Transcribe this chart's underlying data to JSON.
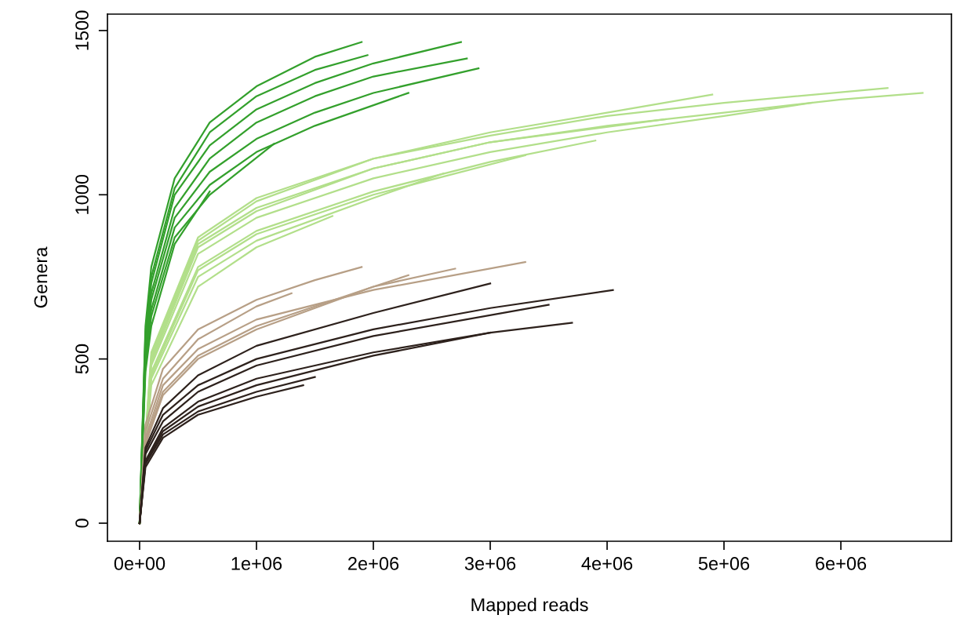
{
  "chart_data": {
    "type": "line",
    "xlabel": "Mapped reads",
    "ylabel": "Genera",
    "xlim": [
      -275000,
      6946000
    ],
    "ylim": [
      -55,
      1550
    ],
    "xticks": [
      {
        "value": 0,
        "label": "0e+00"
      },
      {
        "value": 1000000,
        "label": "1e+06"
      },
      {
        "value": 2000000,
        "label": "2e+06"
      },
      {
        "value": 3000000,
        "label": "3e+06"
      },
      {
        "value": 4000000,
        "label": "4e+06"
      },
      {
        "value": 5000000,
        "label": "5e+06"
      },
      {
        "value": 6000000,
        "label": "6e+06"
      }
    ],
    "yticks": [
      0,
      500,
      1000,
      1500
    ],
    "grid": false,
    "legend": false,
    "marker": "none",
    "line_style": "solid",
    "series": [
      {
        "color": "#b2df8a",
        "x": [
          0,
          100000,
          500000,
          1000000,
          2000000,
          3000000,
          4000000,
          5000000,
          6000000,
          6700000
        ],
        "values": [
          0,
          500,
          850,
          960,
          1080,
          1160,
          1210,
          1250,
          1290,
          1310
        ]
      },
      {
        "color": "#b2df8a",
        "x": [
          0,
          100000,
          500000,
          1000000,
          2000000,
          3000000,
          4000000,
          5000000,
          6400000
        ],
        "values": [
          0,
          520,
          870,
          990,
          1110,
          1180,
          1240,
          1280,
          1325
        ]
      },
      {
        "color": "#b2df8a",
        "x": [
          0,
          100000,
          500000,
          1000000,
          2000000,
          3000000,
          4000000,
          4900000
        ],
        "values": [
          0,
          510,
          860,
          980,
          1110,
          1190,
          1250,
          1305
        ]
      },
      {
        "color": "#b2df8a",
        "x": [
          0,
          100000,
          500000,
          1000000,
          2000000,
          3000000,
          4000000,
          5000000,
          5750000
        ],
        "values": [
          0,
          480,
          820,
          930,
          1050,
          1130,
          1190,
          1240,
          1280
        ]
      },
      {
        "color": "#b2df8a",
        "x": [
          0,
          100000,
          500000,
          1000000,
          2000000,
          3000000,
          3900000
        ],
        "values": [
          0,
          460,
          780,
          890,
          1010,
          1100,
          1165
        ]
      },
      {
        "color": "#b2df8a",
        "x": [
          0,
          100000,
          500000,
          1000000,
          1650000
        ],
        "values": [
          0,
          420,
          720,
          840,
          935
        ]
      },
      {
        "color": "#b2df8a",
        "x": [
          0,
          100000,
          500000,
          1000000,
          2000000,
          3300000
        ],
        "values": [
          0,
          450,
          770,
          880,
          1000,
          1120
        ]
      },
      {
        "color": "#b2df8a",
        "x": [
          0,
          100000,
          500000,
          1000000,
          2000000,
          2600000
        ],
        "values": [
          0,
          440,
          750,
          860,
          990,
          1065
        ]
      },
      {
        "color": "#b2df8a",
        "x": [
          0,
          100000,
          500000,
          1000000,
          2000000,
          3000000,
          4500000
        ],
        "values": [
          0,
          490,
          840,
          950,
          1080,
          1160,
          1230
        ]
      },
      {
        "color": "#33a02c",
        "x": [
          0,
          50000,
          100000,
          300000,
          600000,
          1000000,
          1500000,
          1900000
        ],
        "values": [
          0,
          600,
          780,
          1050,
          1220,
          1330,
          1420,
          1465
        ]
      },
      {
        "color": "#33a02c",
        "x": [
          0,
          50000,
          100000,
          300000,
          600000,
          1000000,
          1500000,
          2000000,
          2750000
        ],
        "values": [
          0,
          560,
          730,
          1000,
          1150,
          1260,
          1340,
          1400,
          1465
        ]
      },
      {
        "color": "#33a02c",
        "x": [
          0,
          50000,
          100000,
          300000,
          600000,
          1000000,
          1500000,
          2000000,
          2900000
        ],
        "values": [
          0,
          520,
          680,
          930,
          1070,
          1170,
          1250,
          1310,
          1385
        ]
      },
      {
        "color": "#33a02c",
        "x": [
          0,
          50000,
          100000,
          300000,
          600000,
          1000000,
          1500000,
          2300000
        ],
        "values": [
          0,
          500,
          650,
          900,
          1030,
          1130,
          1210,
          1310
        ]
      },
      {
        "color": "#33a02c",
        "x": [
          0,
          50000,
          100000,
          300000,
          600000,
          1150000
        ],
        "values": [
          0,
          480,
          630,
          870,
          1000,
          1155
        ]
      },
      {
        "color": "#33a02c",
        "x": [
          0,
          50000,
          100000,
          300000,
          600000
        ],
        "values": [
          0,
          460,
          600,
          850,
          1010
        ]
      },
      {
        "color": "#33a02c",
        "x": [
          0,
          50000,
          100000,
          300000,
          600000,
          1000000,
          1500000,
          2000000,
          2800000
        ],
        "values": [
          0,
          540,
          700,
          960,
          1110,
          1220,
          1300,
          1360,
          1415
        ]
      },
      {
        "color": "#33a02c",
        "x": [
          0,
          50000,
          100000,
          300000,
          600000,
          1000000,
          1500000,
          1950000
        ],
        "values": [
          0,
          580,
          750,
          1020,
          1190,
          1300,
          1380,
          1425
        ]
      },
      {
        "color": "#b79f86",
        "x": [
          0,
          50000,
          200000,
          500000,
          1000000,
          1500000,
          1900000
        ],
        "values": [
          0,
          300,
          470,
          590,
          680,
          740,
          780
        ]
      },
      {
        "color": "#b79f86",
        "x": [
          0,
          50000,
          200000,
          500000,
          1000000,
          2000000,
          3300000
        ],
        "values": [
          0,
          260,
          420,
          530,
          620,
          710,
          795
        ]
      },
      {
        "color": "#b79f86",
        "x": [
          0,
          50000,
          200000,
          500000,
          1000000,
          2000000,
          2700000
        ],
        "values": [
          0,
          250,
          400,
          510,
          600,
          720,
          775
        ]
      },
      {
        "color": "#b79f86",
        "x": [
          0,
          50000,
          200000,
          500000,
          1000000,
          1300000
        ],
        "values": [
          0,
          280,
          440,
          560,
          660,
          700
        ]
      },
      {
        "color": "#b79f86",
        "x": [
          0,
          50000,
          200000,
          500000,
          1000000,
          2000000,
          2300000
        ],
        "values": [
          0,
          240,
          390,
          500,
          590,
          720,
          755
        ]
      },
      {
        "color": "#2d211c",
        "x": [
          0,
          50000,
          200000,
          500000,
          1000000,
          2000000,
          3000000,
          4050000
        ],
        "values": [
          0,
          220,
          330,
          420,
          500,
          590,
          655,
          710
        ]
      },
      {
        "color": "#2d211c",
        "x": [
          0,
          50000,
          200000,
          500000,
          1000000,
          2000000,
          3000000,
          3700000
        ],
        "values": [
          0,
          190,
          290,
          370,
          440,
          520,
          580,
          610
        ]
      },
      {
        "color": "#2d211c",
        "x": [
          0,
          50000,
          200000,
          500000,
          1000000,
          2000000,
          3000000
        ],
        "values": [
          0,
          230,
          350,
          450,
          540,
          640,
          730
        ]
      },
      {
        "color": "#2d211c",
        "x": [
          0,
          50000,
          200000,
          500000,
          1000000,
          2000000,
          3500000
        ],
        "values": [
          0,
          210,
          310,
          400,
          480,
          570,
          665
        ]
      },
      {
        "color": "#2d211c",
        "x": [
          0,
          50000,
          200000,
          500000,
          1000000,
          1500000
        ],
        "values": [
          0,
          180,
          270,
          340,
          400,
          445
        ]
      },
      {
        "color": "#2d211c",
        "x": [
          0,
          50000,
          200000,
          500000,
          1000000,
          1400000
        ],
        "values": [
          0,
          170,
          260,
          330,
          385,
          420
        ]
      },
      {
        "color": "#2d211c",
        "x": [
          0,
          50000,
          200000,
          500000,
          1000000,
          2000000,
          3000000
        ],
        "values": [
          0,
          185,
          280,
          355,
          420,
          510,
          580
        ]
      }
    ]
  }
}
